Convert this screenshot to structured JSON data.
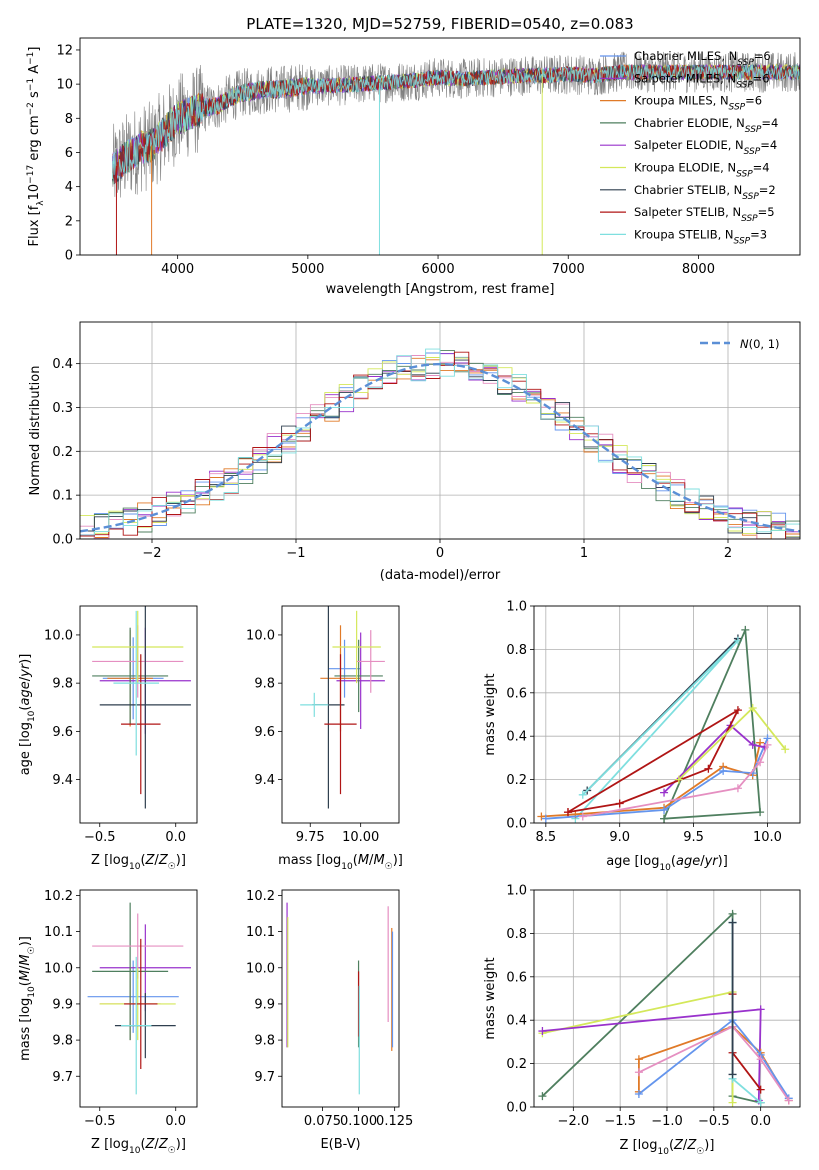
{
  "figure": {
    "title": "PLATE=1320, MJD=52759, FIBERID=0540, z=0.083"
  },
  "chart_data": [
    {
      "panel": "spectrum",
      "type": "line",
      "title": "PLATE=1320, MJD=52759, FIBERID=0540, z=0.083",
      "xlabel": "wavelength [Angstrom, rest frame]",
      "ylabel": "Flux [f_λ 10^-17 erg cm^-2 s^-1 A^-1]",
      "xlim": [
        3250,
        8780
      ],
      "ylim": [
        0,
        12.7
      ],
      "xticks": [
        4000,
        5000,
        6000,
        7000,
        8000
      ],
      "yticks": [
        0,
        2,
        4,
        6,
        8,
        10,
        12
      ],
      "legend_position": "top-right",
      "continuum": {
        "x": [
          3500,
          3600,
          3700,
          3800,
          3900,
          4000,
          4100,
          4200,
          4300,
          4400,
          4500,
          4600,
          4700,
          4800,
          4900,
          5000,
          5200,
          5400,
          5600,
          5800,
          6000,
          6200,
          6400,
          6600,
          6800,
          7000,
          7200,
          7400
        ],
        "y": [
          5.0,
          5.7,
          6.2,
          6.4,
          7.2,
          8.0,
          8.3,
          8.6,
          8.7,
          9.2,
          9.5,
          9.6,
          9.7,
          9.7,
          9.8,
          9.9,
          9.9,
          10.0,
          10.1,
          10.2,
          10.4,
          10.3,
          10.4,
          10.5,
          10.5,
          10.6,
          10.5,
          10.7
        ]
      },
      "series": [
        {
          "name": "Chabrier MILES, N_SSP=6",
          "color": "#6495ed"
        },
        {
          "name": "Salpeter MILES, N_SSP=6",
          "color": "#9932cc"
        },
        {
          "name": "Kroupa MILES, N_SSP=6",
          "color": "#e07a28"
        },
        {
          "name": "Chabrier ELODIE, N_SSP=4",
          "color": "#4f7f5f"
        },
        {
          "name": "Salpeter ELODIE, N_SSP=4",
          "color": "#9932cc"
        },
        {
          "name": "Kroupa ELODIE, N_SSP=4",
          "color": "#d4e85a"
        },
        {
          "name": "Chabrier STELIB, N_SSP=2",
          "color": "#2f3f4f"
        },
        {
          "name": "Salpeter STELIB, N_SSP=5",
          "color": "#b01515"
        },
        {
          "name": "Kroupa STELIB, N_SSP=3",
          "color": "#7fdfdf"
        }
      ]
    },
    {
      "panel": "residuals",
      "type": "line",
      "xlabel": "(data-model)/error",
      "ylabel": "Normed distribution",
      "xlim": [
        -2.5,
        2.5
      ],
      "ylim": [
        0,
        0.495
      ],
      "xticks": [
        -2,
        -1,
        0,
        1,
        2
      ],
      "yticks": [
        0.0,
        0.1,
        0.2,
        0.3,
        0.4
      ],
      "grid": true,
      "legend": {
        "label": "N(0,1)",
        "position": "top-right"
      },
      "x": [
        -2.4,
        -2.2,
        -2.0,
        -1.8,
        -1.6,
        -1.4,
        -1.2,
        -1.0,
        -0.8,
        -0.6,
        -0.4,
        -0.2,
        0.0,
        0.2,
        0.4,
        0.6,
        0.8,
        1.0,
        1.2,
        1.4,
        1.6,
        1.8,
        2.0,
        2.2,
        2.4
      ],
      "gaussian": [
        0.022,
        0.036,
        0.054,
        0.079,
        0.111,
        0.15,
        0.194,
        0.242,
        0.29,
        0.333,
        0.368,
        0.391,
        0.399,
        0.391,
        0.368,
        0.333,
        0.29,
        0.242,
        0.194,
        0.15,
        0.111,
        0.079,
        0.054,
        0.036,
        0.022
      ]
    },
    {
      "panel": "Z-age",
      "type": "scatter",
      "xlabel": "Z [log10(Z/Z☉)]",
      "ylabel": "age  [log10(age/yr)]",
      "xlim": [
        -0.63,
        0.14
      ],
      "ylim": [
        9.22,
        10.12
      ],
      "xticks": [
        -0.5,
        0.0
      ],
      "yticks": [
        9.4,
        9.6,
        9.8,
        10.0
      ],
      "points": [
        {
          "x": -0.28,
          "y": 9.82,
          "xerr": 0.2,
          "yerr": 0.17,
          "color": "#6495ed"
        },
        {
          "x": -0.2,
          "y": 9.81,
          "xerr": 0.3,
          "yerr": 0.22,
          "color": "#9932cc"
        },
        {
          "x": -0.3,
          "y": 9.82,
          "xerr": 0.15,
          "yerr": 0.2,
          "color": "#e07a28"
        },
        {
          "x": -0.3,
          "y": 9.83,
          "xerr": 0.25,
          "yerr": 0.2,
          "color": "#4f7f5f"
        },
        {
          "x": -0.25,
          "y": 9.89,
          "xerr": 0.3,
          "yerr": 0.15,
          "color": "#e58fc1"
        },
        {
          "x": -0.25,
          "y": 9.95,
          "xerr": 0.3,
          "yerr": 0.15,
          "color": "#d4e85a"
        },
        {
          "x": -0.2,
          "y": 9.71,
          "xerr": 0.3,
          "yerr": 0.43,
          "color": "#2f3f4f"
        },
        {
          "x": -0.23,
          "y": 9.63,
          "xerr": 0.13,
          "yerr": 0.29,
          "color": "#b01515"
        },
        {
          "x": -0.26,
          "y": 9.8,
          "xerr": 0.15,
          "yerr": 0.3,
          "color": "#7fdfdf"
        }
      ]
    },
    {
      "panel": "mass-age",
      "type": "scatter",
      "xlabel": "mass [log10(M/M☉)]",
      "ylabel": "",
      "xlim": [
        9.61,
        10.19
      ],
      "ylim": [
        9.22,
        10.12
      ],
      "xticks": [
        9.75,
        10.0
      ],
      "yticks": [
        9.4,
        9.6,
        9.8,
        10.0
      ],
      "points": [
        {
          "x": 9.92,
          "y": 9.86,
          "xerr": 0.08,
          "yerr": 0.12,
          "color": "#6495ed"
        },
        {
          "x": 10.0,
          "y": 9.81,
          "xerr": 0.12,
          "yerr": 0.2,
          "color": "#9932cc"
        },
        {
          "x": 9.9,
          "y": 9.82,
          "xerr": 0.1,
          "yerr": 0.22,
          "color": "#e07a28"
        },
        {
          "x": 9.99,
          "y": 9.83,
          "xerr": 0.12,
          "yerr": 0.15,
          "color": "#4f7f5f"
        },
        {
          "x": 10.05,
          "y": 9.89,
          "xerr": 0.07,
          "yerr": 0.13,
          "color": "#e58fc1"
        },
        {
          "x": 9.98,
          "y": 9.95,
          "xerr": 0.12,
          "yerr": 0.15,
          "color": "#d4e85a"
        },
        {
          "x": 9.84,
          "y": 9.71,
          "xerr": 0.08,
          "yerr": 0.43,
          "color": "#2f3f4f"
        },
        {
          "x": 9.9,
          "y": 9.63,
          "xerr": 0.08,
          "yerr": 0.29,
          "color": "#b01515"
        },
        {
          "x": 9.77,
          "y": 9.71,
          "xerr": 0.07,
          "yerr": 0.05,
          "color": "#7fdfdf"
        }
      ]
    },
    {
      "panel": "age-massweight",
      "type": "line",
      "xlabel": "age  [log10(age/yr)]",
      "ylabel": "mass weight",
      "xlim": [
        8.42,
        10.22
      ],
      "ylim": [
        0,
        1
      ],
      "xticks": [
        8.5,
        9.0,
        9.5,
        10.0
      ],
      "yticks": [
        0.0,
        0.2,
        0.4,
        0.6,
        0.8,
        1.0
      ],
      "grid": true,
      "series": [
        {
          "color": "#2f3f4f",
          "x": [
            8.78,
            9.8
          ],
          "y": [
            0.15,
            0.85
          ]
        },
        {
          "color": "#7fdfdf",
          "x": [
            8.7,
            9.8,
            8.75
          ],
          "y": [
            0.02,
            0.84,
            0.13
          ]
        },
        {
          "color": "#4f7f5f",
          "x": [
            9.3,
            9.85,
            9.95,
            9.3
          ],
          "y": [
            0.02,
            0.89,
            0.05,
            0.02
          ]
        },
        {
          "color": "#e07a28",
          "x": [
            8.47,
            8.7,
            9.3,
            9.7,
            9.9,
            9.95
          ],
          "y": [
            0.03,
            0.04,
            0.07,
            0.26,
            0.22,
            0.37
          ]
        },
        {
          "color": "#6495ed",
          "x": [
            8.5,
            9.3,
            9.7,
            9.9,
            10.0
          ],
          "y": [
            0.02,
            0.06,
            0.24,
            0.23,
            0.39
          ]
        },
        {
          "color": "#9932cc",
          "x": [
            9.3,
            9.75,
            9.9,
            9.98
          ],
          "y": [
            0.14,
            0.45,
            0.36,
            0.35
          ]
        },
        {
          "color": "#b01515",
          "x": [
            8.65,
            9.0,
            9.6,
            9.8,
            8.65
          ],
          "y": [
            0.05,
            0.09,
            0.25,
            0.52,
            0.05
          ]
        },
        {
          "color": "#d4e85a",
          "x": [
            9.4,
            9.9,
            10.12
          ],
          "y": [
            0.2,
            0.53,
            0.34
          ]
        },
        {
          "color": "#e58fc1",
          "x": [
            8.75,
            9.8,
            9.95,
            10.0
          ],
          "y": [
            0.03,
            0.16,
            0.28,
            0.36
          ]
        }
      ]
    },
    {
      "panel": "Z-mass",
      "type": "scatter",
      "xlabel": "Z [log10(Z/Z☉)]",
      "ylabel": "mass [log10(M/M☉)]",
      "xlim": [
        -0.63,
        0.14
      ],
      "ylim": [
        9.615,
        10.215
      ],
      "xticks": [
        -0.5,
        0.0
      ],
      "yticks": [
        9.7,
        9.8,
        9.9,
        10.0,
        10.1,
        10.2
      ],
      "points": [
        {
          "x": -0.28,
          "y": 9.92,
          "xerr": 0.3,
          "yerr": 0.1,
          "color": "#6495ed"
        },
        {
          "x": -0.2,
          "y": 10.0,
          "xerr": 0.3,
          "yerr": 0.12,
          "color": "#9932cc"
        },
        {
          "x": -0.3,
          "y": 9.9,
          "xerr": 0.2,
          "yerr": 0.1,
          "color": "#e07a28"
        },
        {
          "x": -0.3,
          "y": 9.99,
          "xerr": 0.25,
          "yerr": 0.19,
          "color": "#4f7f5f"
        },
        {
          "x": -0.25,
          "y": 10.06,
          "xerr": 0.3,
          "yerr": 0.09,
          "color": "#e58fc1"
        },
        {
          "x": -0.25,
          "y": 9.9,
          "xerr": 0.25,
          "yerr": 0.1,
          "color": "#d4e85a"
        },
        {
          "x": -0.2,
          "y": 9.84,
          "xerr": 0.2,
          "yerr": 0.09,
          "color": "#2f3f4f"
        },
        {
          "x": -0.23,
          "y": 9.9,
          "xerr": 0.11,
          "yerr": 0.18,
          "color": "#b01515"
        },
        {
          "x": -0.26,
          "y": 9.84,
          "xerr": 0.1,
          "yerr": 0.19,
          "color": "#7fdfdf"
        }
      ]
    },
    {
      "panel": "EBV-mass",
      "type": "scatter",
      "xlabel": "E(B-V)",
      "ylabel": "",
      "xlim": [
        0.047,
        0.128
      ],
      "ylim": [
        9.615,
        10.215
      ],
      "xticks": [
        0.075,
        0.1,
        0.125
      ],
      "yticks": [
        9.7,
        9.8,
        9.9,
        10.0,
        10.1,
        10.2
      ],
      "points": [
        {
          "x": 0.0505,
          "y": 9.98,
          "yerr": 0.2,
          "color": "#9932cc"
        },
        {
          "x": 0.051,
          "y": 9.96,
          "yerr": 0.18,
          "color": "#d4e85a"
        },
        {
          "x": 0.1,
          "y": 9.9,
          "yerr": 0.12,
          "color": "#4f7f5f"
        },
        {
          "x": 0.1,
          "y": 9.9,
          "yerr": 0.09,
          "color": "#b01515"
        },
        {
          "x": 0.1005,
          "y": 9.8,
          "yerr": 0.15,
          "color": "#7fdfdf"
        },
        {
          "x": 0.1205,
          "y": 10.01,
          "yerr": 0.16,
          "color": "#e58fc1"
        },
        {
          "x": 0.123,
          "y": 9.94,
          "yerr": 0.17,
          "color": "#e07a28"
        },
        {
          "x": 0.1235,
          "y": 9.94,
          "yerr": 0.16,
          "color": "#6495ed"
        }
      ]
    },
    {
      "panel": "Z-massweight",
      "type": "line",
      "xlabel": "Z [log10(Z/Z☉)]",
      "ylabel": "mass weight",
      "xlim": [
        -2.42,
        0.42
      ],
      "ylim": [
        0,
        1
      ],
      "xticks": [
        -2.0,
        -1.5,
        -1.0,
        -0.5,
        0.0
      ],
      "yticks": [
        0.0,
        0.2,
        0.4,
        0.6,
        0.8,
        1.0
      ],
      "grid": true,
      "series": [
        {
          "color": "#4f7f5f",
          "x": [
            -2.33,
            -0.3,
            -0.3,
            0.0
          ],
          "y": [
            0.05,
            0.89,
            0.05,
            0.02
          ]
        },
        {
          "color": "#d4e85a",
          "x": [
            -2.33,
            -0.3,
            -0.3
          ],
          "y": [
            0.34,
            0.53,
            0.02
          ]
        },
        {
          "color": "#9932cc",
          "x": [
            -2.33,
            0.0,
            -0.02
          ],
          "y": [
            0.35,
            0.45,
            0.03
          ]
        },
        {
          "color": "#e07a28",
          "x": [
            -1.3,
            -1.3,
            -0.3,
            0.0,
            0.3
          ],
          "y": [
            0.07,
            0.22,
            0.37,
            0.25,
            0.03
          ]
        },
        {
          "color": "#6495ed",
          "x": [
            -1.3,
            -0.3,
            0.0,
            0.3
          ],
          "y": [
            0.06,
            0.4,
            0.24,
            0.04
          ]
        },
        {
          "color": "#e58fc1",
          "x": [
            -1.3,
            -0.3,
            0.0,
            0.3
          ],
          "y": [
            0.16,
            0.37,
            0.22,
            0.03
          ]
        },
        {
          "color": "#b01515",
          "x": [
            -0.3,
            -0.3,
            0.0
          ],
          "y": [
            0.52,
            0.25,
            0.08
          ]
        },
        {
          "color": "#7fdfdf",
          "x": [
            -0.3,
            -0.3,
            0.0
          ],
          "y": [
            0.85,
            0.13,
            0.02
          ]
        },
        {
          "color": "#2f3f4f",
          "x": [
            -0.3,
            -0.3
          ],
          "y": [
            0.85,
            0.15
          ]
        }
      ]
    }
  ]
}
